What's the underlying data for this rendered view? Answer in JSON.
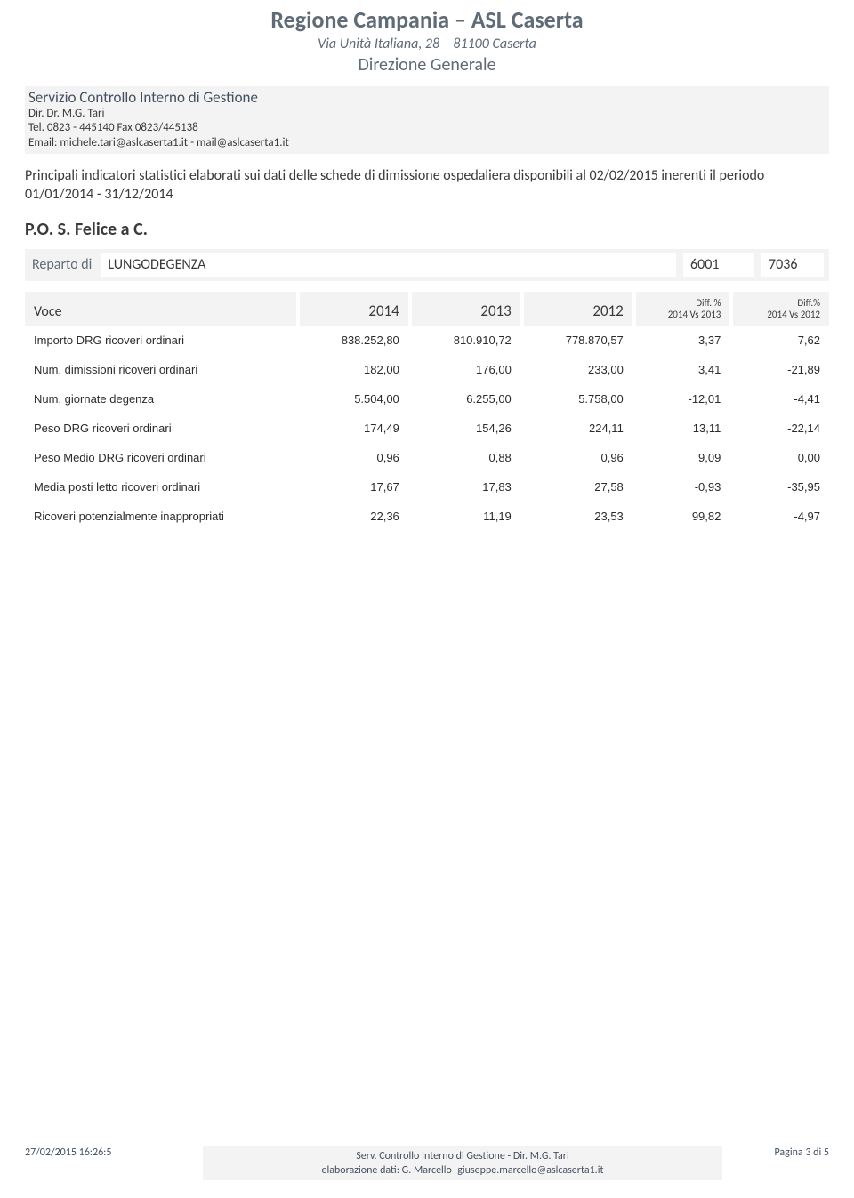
{
  "header": {
    "org_title": "Regione Campania – ASL Caserta",
    "address": "Via Unità Italiana, 28 – 81100 Caserta",
    "department": "Direzione Generale"
  },
  "service": {
    "title": "Servizio Controllo Interno di Gestione",
    "director": "Dir. Dr. M.G. Tari",
    "phone": "Tel. 0823 - 445140 Fax 0823/445138",
    "email": "Email: michele.tari@aslcaserta1.it - mail@aslcaserta1.it"
  },
  "intro": "Principali indicatori statistici elaborati sui dati delle schede di dimissione ospedaliera disponibili al 02/02/2015 inerenti il periodo  01/01/2014 - 31/12/2014",
  "facility": "P.O. S. Felice a C.",
  "reparto": {
    "label": "Reparto di",
    "name": "LUNGODEGENZA",
    "code1": "6001",
    "code2": "7036"
  },
  "table": {
    "columns": {
      "voce": "Voce",
      "y2014": "2014",
      "y2013": "2013",
      "y2012": "2012",
      "diff1": "Diff. %\n2014 Vs 2013",
      "diff2": "Diff.%\n2014 Vs 2012"
    },
    "rows": [
      {
        "label": "Importo DRG ricoveri ordinari",
        "y2014": "838.252,80",
        "y2013": "810.910,72",
        "y2012": "778.870,57",
        "d1": "3,37",
        "d2": "7,62"
      },
      {
        "label": "Num. dimissioni ricoveri ordinari",
        "y2014": "182,00",
        "y2013": "176,00",
        "y2012": "233,00",
        "d1": "3,41",
        "d2": "-21,89"
      },
      {
        "label": "Num. giornate degenza",
        "y2014": "5.504,00",
        "y2013": "6.255,00",
        "y2012": "5.758,00",
        "d1": "-12,01",
        "d2": "-4,41"
      },
      {
        "label": "Peso DRG ricoveri ordinari",
        "y2014": "174,49",
        "y2013": "154,26",
        "y2012": "224,11",
        "d1": "13,11",
        "d2": "-22,14"
      },
      {
        "label": "Peso Medio DRG ricoveri ordinari",
        "y2014": "0,96",
        "y2013": "0,88",
        "y2012": "0,96",
        "d1": "9,09",
        "d2": "0,00"
      },
      {
        "label": "Media posti letto ricoveri ordinari",
        "y2014": "17,67",
        "y2013": "17,83",
        "y2012": "27,58",
        "d1": "-0,93",
        "d2": "-35,95"
      },
      {
        "label": "Ricoveri potenzialmente inappropriati",
        "y2014": "22,36",
        "y2013": "11,19",
        "y2012": "23,53",
        "d1": "99,82",
        "d2": "-4,97"
      }
    ]
  },
  "footer": {
    "timestamp": "27/02/2015 16:26:5",
    "center_line1": "Serv. Controllo Interno di Gestione - Dir. M.G. Tari",
    "center_line2": "elaborazione dati: G. Marcello- giuseppe.marcello@aslcaserta1.it",
    "page": "Pagina 3 di 5"
  }
}
